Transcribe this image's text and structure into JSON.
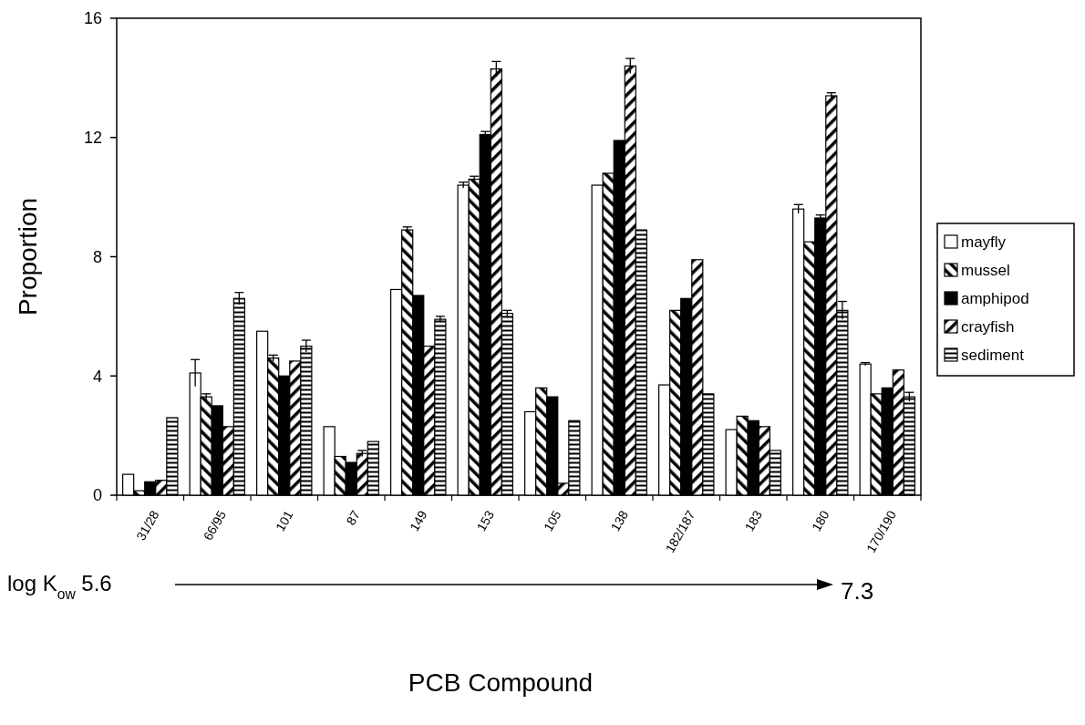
{
  "chart_data": {
    "type": "bar",
    "xlabel": "PCB Compound",
    "ylabel": "Proportion",
    "categories": [
      "31/28",
      "66/95",
      "101",
      "87",
      "149",
      "153",
      "105",
      "138",
      "182/187",
      "183",
      "180",
      "170/190"
    ],
    "series": [
      {
        "name": "mayfly",
        "color": "#ffffff",
        "values": [
          0.7,
          4.1,
          5.5,
          2.3,
          6.9,
          10.4,
          2.8,
          10.4,
          3.7,
          2.2,
          9.6,
          4.4
        ],
        "errors": [
          null,
          0.45,
          null,
          null,
          null,
          0.1,
          null,
          null,
          null,
          null,
          0.15,
          0.05
        ]
      },
      {
        "name": "mussel",
        "color": "#000000",
        "values": [
          0.15,
          3.3,
          4.6,
          1.3,
          8.9,
          10.6,
          3.6,
          10.8,
          6.2,
          2.65,
          8.5,
          3.4
        ],
        "errors": [
          null,
          0.1,
          0.1,
          null,
          0.1,
          0.1,
          null,
          null,
          null,
          null,
          null,
          null
        ]
      },
      {
        "name": "amphipod",
        "color": "#000000",
        "values": [
          0.45,
          3.0,
          4.0,
          1.1,
          6.7,
          12.1,
          3.3,
          11.9,
          6.6,
          2.5,
          9.3,
          3.6
        ],
        "errors": [
          null,
          null,
          null,
          null,
          null,
          0.1,
          null,
          null,
          null,
          null,
          0.1,
          null
        ]
      },
      {
        "name": "crayfish",
        "color": "#000000",
        "values": [
          0.5,
          2.3,
          4.5,
          1.4,
          5.0,
          14.3,
          0.4,
          14.4,
          7.9,
          2.3,
          13.4,
          4.2
        ],
        "errors": [
          null,
          null,
          null,
          0.1,
          null,
          0.25,
          null,
          0.25,
          null,
          null,
          0.1,
          null
        ]
      },
      {
        "name": "sediment",
        "color": "#000000",
        "values": [
          2.6,
          6.6,
          5.0,
          1.8,
          5.9,
          6.1,
          2.5,
          8.9,
          3.4,
          1.5,
          6.2,
          3.3
        ],
        "errors": [
          null,
          0.2,
          0.2,
          null,
          0.1,
          0.1,
          null,
          null,
          null,
          null,
          0.3,
          0.15
        ]
      }
    ],
    "ylim": [
      0,
      16
    ],
    "yticks": [
      0,
      4,
      8,
      12,
      16
    ],
    "grid": false,
    "legend": "right",
    "annotations": [
      "log K$_{ow}$ 5.6",
      "7.3"
    ]
  }
}
